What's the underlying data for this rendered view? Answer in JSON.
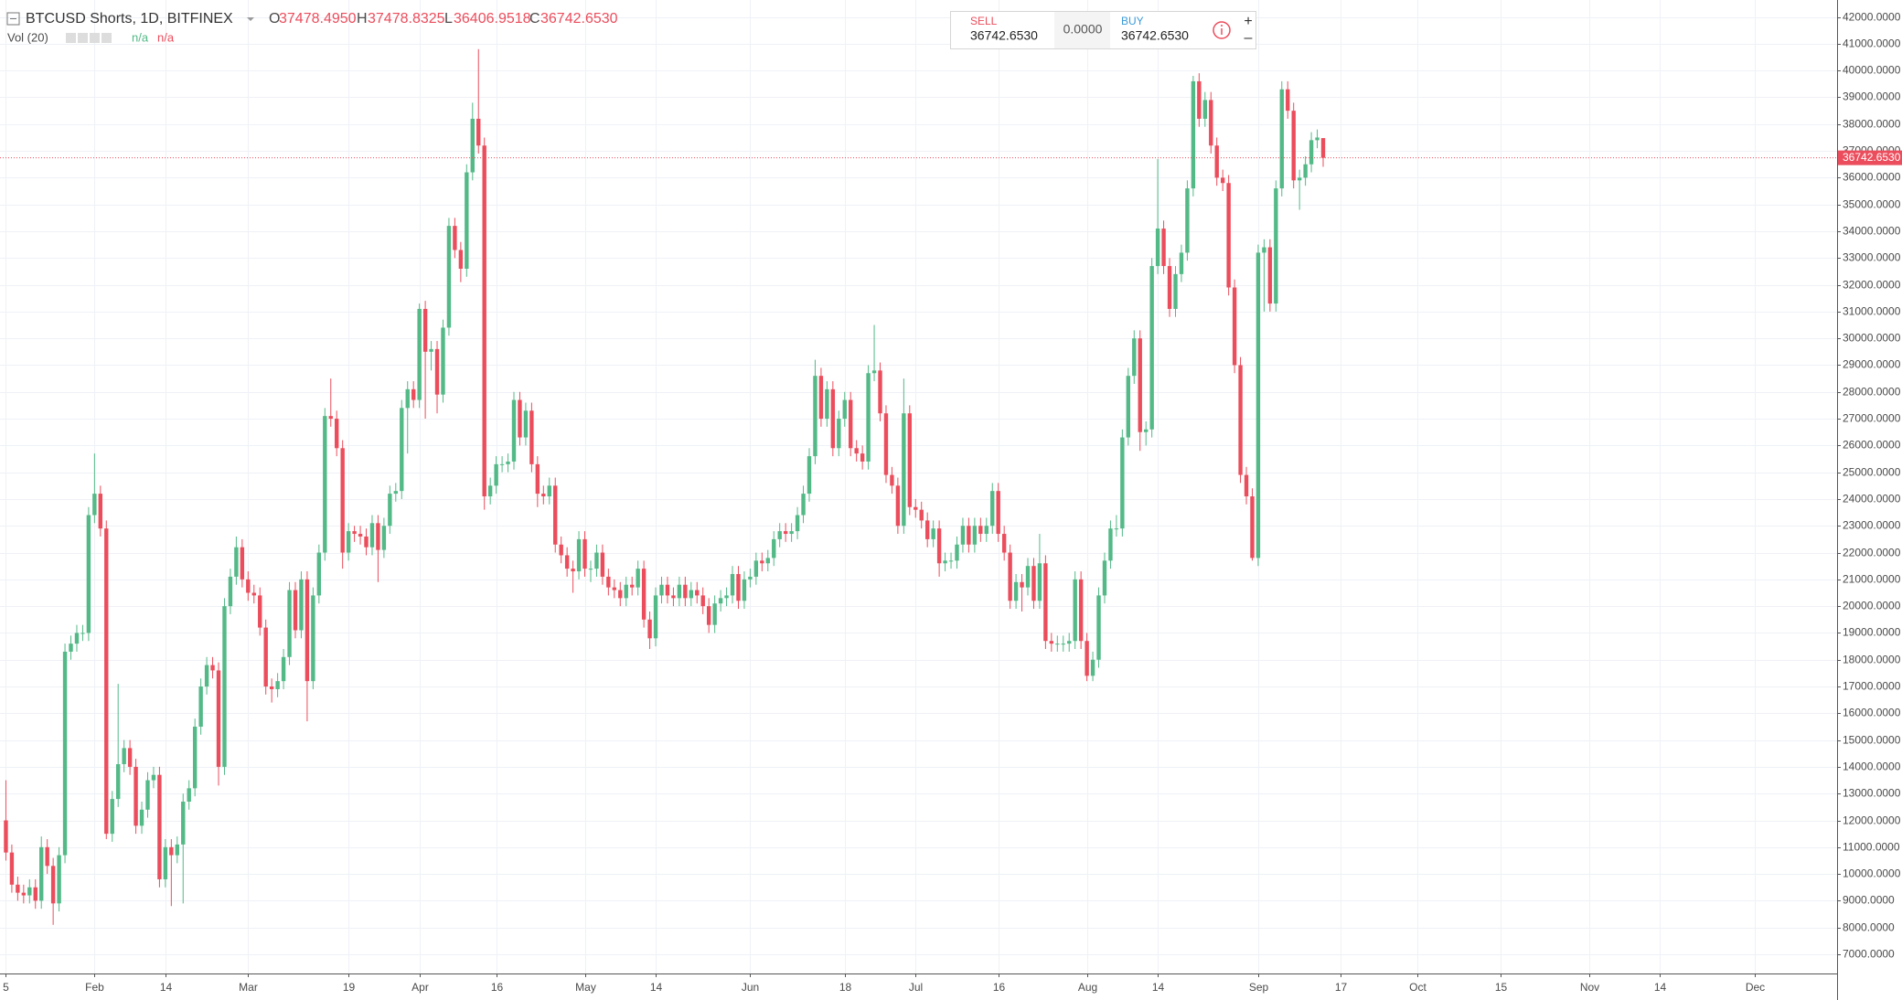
{
  "header": {
    "ohlc": [
      {
        "label": "O",
        "value": "37478.4950"
      },
      {
        "label": "H",
        "value": "37478.8325"
      },
      {
        "label": "L",
        "value": "36406.9518"
      },
      {
        "label": "C",
        "value": "36742.6530"
      }
    ],
    "volume": {
      "label": "Vol (20)",
      "values": [
        "n/a",
        "n/a"
      ]
    }
  },
  "trade_panel": {
    "sell_label": "SELL",
    "sell_price": "36742.6530",
    "spread": "0.0000",
    "buy_label": "BUY",
    "buy_price": "36742.6530",
    "zoom_in": "+",
    "zoom_out": "–"
  },
  "chart_data": {
    "type": "candlestick",
    "title": "BTCUSD Shorts, 1D, BITFINEX",
    "colors": {
      "up": "#53b987",
      "down": "#eb4d5c"
    },
    "grid": true,
    "open": [
      12000,
      10800,
      9600,
      9300,
      9200,
      9500,
      9000,
      11000,
      10300,
      8900,
      10700,
      18300,
      18600,
      19000,
      19000,
      23400,
      24200,
      22900,
      11500,
      12800,
      14100,
      14700,
      14000,
      11800,
      12400,
      13500,
      13700,
      9800,
      11000,
      10700,
      11100,
      12700,
      13200,
      15500,
      17000,
      17800,
      17600,
      14000,
      20000,
      21100,
      22200,
      21000,
      20500,
      20400,
      19200,
      17000,
      16900,
      17200,
      18100,
      20600,
      19100,
      21000,
      17200,
      20400,
      22000,
      27100,
      27000,
      25900,
      22000,
      22800,
      22700,
      22600,
      22200,
      23100,
      22100,
      23000,
      24200,
      24300,
      27400,
      28100,
      27700,
      31100,
      29500,
      29600,
      27900,
      30400,
      34200,
      33300,
      32600,
      36200,
      38200,
      37200,
      24100,
      24500,
      25300,
      25300,
      25400,
      27700,
      26300,
      27300,
      25300,
      24200,
      24100,
      24500,
      22300,
      21900,
      21400,
      21300,
      22500,
      21400,
      21400,
      22000,
      21100,
      20700,
      20600,
      20300,
      20800,
      20700,
      21400,
      19500,
      18800,
      20400,
      20800,
      20400,
      20300,
      20800,
      20300,
      20600,
      20400,
      20000,
      19300,
      20100,
      20300,
      20400,
      21200,
      20200,
      21000,
      21100,
      21700,
      21600,
      21800,
      22500,
      22800,
      22700,
      22800,
      23400,
      24200,
      25600,
      28600,
      27000,
      28100,
      25900,
      27000,
      27700,
      25900,
      25700,
      25400,
      28700,
      28800,
      27200,
      24900,
      24500,
      23000,
      27200,
      23700,
      23600,
      23200,
      22500,
      22900,
      21600,
      21700,
      21700,
      22300,
      23000,
      22300,
      23000,
      22700,
      23000,
      24300,
      22700,
      22000,
      20200,
      20900,
      20700,
      21500,
      20200,
      21600,
      18700,
      18600,
      18600,
      18600,
      18700,
      21000,
      18700,
      17400,
      18000,
      20400,
      21700,
      22900,
      22900,
      26300,
      28600,
      30000,
      26500,
      26600,
      32700,
      34100,
      32700,
      31100,
      32400,
      33200,
      35600,
      39600,
      38200,
      38900,
      37200,
      36000,
      35800,
      31900,
      29000,
      24900,
      24100,
      21800,
      33200,
      33400,
      31300,
      35600,
      39300,
      38500,
      35900,
      36000,
      36500,
      37400,
      37478.495
    ],
    "high": [
      13500,
      11100,
      9900,
      9600,
      9800,
      9800,
      11400,
      11300,
      10600,
      11000,
      18600,
      18900,
      19300,
      19300,
      23700,
      25700,
      24500,
      23200,
      13100,
      17100,
      15000,
      15000,
      14300,
      12700,
      13800,
      14000,
      14000,
      11300,
      11300,
      11400,
      13000,
      13500,
      15800,
      17300,
      18100,
      18100,
      17900,
      20300,
      21400,
      22600,
      22500,
      21300,
      20800,
      20700,
      19500,
      17300,
      17500,
      18400,
      20900,
      20900,
      21300,
      21300,
      20700,
      22300,
      27400,
      28500,
      27300,
      26200,
      23100,
      23000,
      23000,
      22900,
      23400,
      23400,
      23300,
      24500,
      24600,
      27700,
      28400,
      28400,
      31300,
      31400,
      29900,
      29900,
      30700,
      34500,
      34500,
      33600,
      36500,
      38800,
      40800,
      37500,
      24800,
      25600,
      25600,
      25700,
      28000,
      28000,
      27600,
      27600,
      25600,
      24500,
      24800,
      24800,
      22600,
      22200,
      21700,
      22800,
      22800,
      21700,
      22300,
      22300,
      21400,
      21000,
      20900,
      21100,
      21100,
      21700,
      21700,
      19800,
      20700,
      21100,
      21100,
      20700,
      21100,
      21100,
      20900,
      20900,
      20700,
      20300,
      20400,
      20600,
      20700,
      21500,
      21500,
      21300,
      21400,
      22000,
      22000,
      22100,
      22800,
      23100,
      23100,
      23100,
      23700,
      24500,
      25900,
      29200,
      28900,
      28400,
      28400,
      27300,
      28000,
      28000,
      26200,
      26000,
      29000,
      30500,
      29100,
      27500,
      25200,
      24800,
      28500,
      27500,
      24000,
      23900,
      23500,
      23200,
      23200,
      22000,
      22000,
      22600,
      23300,
      23300,
      23300,
      23300,
      23300,
      24600,
      24600,
      23000,
      22300,
      21200,
      21200,
      21800,
      21800,
      22700,
      21900,
      19000,
      18900,
      18900,
      19000,
      21300,
      21300,
      19000,
      18300,
      20700,
      22000,
      23200,
      23400,
      26600,
      28900,
      30300,
      30300,
      26900,
      33000,
      36700,
      34400,
      33000,
      32700,
      33500,
      35900,
      39800,
      39900,
      39200,
      39200,
      37500,
      36300,
      36100,
      32200,
      29300,
      25200,
      24400,
      33500,
      33700,
      33700,
      35900,
      39600,
      39600,
      38800,
      36300,
      36800,
      37700,
      37800,
      37478.8325
    ],
    "low": [
      10500,
      9300,
      9000,
      8900,
      8900,
      8700,
      8700,
      10000,
      8100,
      8600,
      10400,
      18000,
      18300,
      18700,
      18700,
      23100,
      22600,
      11300,
      11200,
      12500,
      13800,
      13700,
      11500,
      11500,
      12100,
      13200,
      9500,
      9500,
      8800,
      10400,
      8900,
      12400,
      12900,
      15200,
      16700,
      17300,
      13300,
      13700,
      19700,
      20800,
      20700,
      20200,
      20100,
      18900,
      16700,
      16400,
      16600,
      16900,
      17800,
      18800,
      18800,
      15700,
      16900,
      20100,
      21700,
      26700,
      25600,
      21400,
      21700,
      22400,
      22300,
      21900,
      21900,
      20900,
      21800,
      22700,
      23900,
      24000,
      25700,
      27400,
      27400,
      27000,
      28800,
      27200,
      27600,
      30100,
      33000,
      32100,
      32300,
      35900,
      36900,
      23600,
      23800,
      24200,
      25000,
      25000,
      25100,
      26000,
      26000,
      25000,
      23700,
      23800,
      23800,
      22000,
      21600,
      21100,
      20500,
      21000,
      21100,
      20900,
      21100,
      20800,
      20400,
      20300,
      20000,
      20000,
      20400,
      20400,
      19200,
      18400,
      18500,
      20100,
      20100,
      20000,
      20000,
      20000,
      20000,
      20100,
      19700,
      19000,
      19000,
      19800,
      20000,
      20100,
      19900,
      19900,
      20700,
      20800,
      21300,
      21300,
      21500,
      22200,
      22400,
      22400,
      22500,
      23100,
      23900,
      25300,
      26700,
      26700,
      25600,
      25600,
      26700,
      25600,
      25400,
      25100,
      25100,
      28400,
      26900,
      24600,
      24200,
      22700,
      22700,
      23400,
      23300,
      22900,
      22200,
      22200,
      21100,
      21300,
      21400,
      21400,
      22000,
      22000,
      22000,
      22400,
      22400,
      22700,
      22400,
      21700,
      19900,
      19900,
      19800,
      20400,
      19900,
      19900,
      18400,
      18300,
      18300,
      18300,
      18300,
      18400,
      18400,
      17200,
      17200,
      17700,
      20100,
      21400,
      22600,
      22600,
      26000,
      28300,
      25800,
      26000,
      26300,
      32400,
      32400,
      30800,
      30800,
      32100,
      32900,
      35300,
      37900,
      37900,
      36900,
      35700,
      35500,
      31600,
      28700,
      24600,
      23800,
      21700,
      21500,
      31000,
      31000,
      31000,
      35300,
      38200,
      35600,
      34800,
      35700,
      36200,
      37100,
      36406.9518
    ],
    "close": [
      10800,
      9600,
      9300,
      9200,
      9500,
      9000,
      11000,
      10300,
      8900,
      10700,
      18300,
      18600,
      19000,
      19000,
      23400,
      24200,
      22900,
      11500,
      12800,
      14100,
      14700,
      14000,
      11800,
      12400,
      13500,
      13700,
      9800,
      11000,
      10700,
      11100,
      12700,
      13200,
      15500,
      17000,
      17800,
      17600,
      14000,
      20000,
      21100,
      22200,
      21000,
      20500,
      20400,
      19200,
      17000,
      16900,
      17200,
      18100,
      20600,
      19100,
      21000,
      17200,
      20400,
      22000,
      27100,
      27000,
      25900,
      22000,
      22800,
      22700,
      22600,
      22200,
      23100,
      22100,
      23000,
      24200,
      24300,
      27400,
      28100,
      27700,
      31100,
      29500,
      29600,
      27900,
      30400,
      34200,
      33300,
      32600,
      36200,
      38200,
      37200,
      24100,
      24500,
      25300,
      25300,
      25400,
      27700,
      26300,
      27300,
      25300,
      24200,
      24100,
      24500,
      22300,
      21900,
      21400,
      21300,
      22500,
      21400,
      21400,
      22000,
      21100,
      20700,
      20600,
      20300,
      20800,
      20700,
      21400,
      19500,
      18800,
      20400,
      20800,
      20400,
      20300,
      20800,
      20300,
      20600,
      20400,
      20000,
      19300,
      20100,
      20300,
      20400,
      21200,
      20200,
      21000,
      21100,
      21700,
      21600,
      21800,
      22500,
      22800,
      22700,
      22800,
      23400,
      24200,
      25600,
      28600,
      27000,
      28100,
      25900,
      27000,
      27700,
      25900,
      25700,
      25400,
      28700,
      28800,
      27200,
      24900,
      24500,
      23000,
      27200,
      23700,
      23600,
      23200,
      22500,
      22900,
      21600,
      21700,
      21700,
      22300,
      23000,
      22300,
      23000,
      22700,
      23000,
      24300,
      22700,
      22000,
      20200,
      20900,
      20700,
      21500,
      20200,
      21600,
      18700,
      18600,
      18600,
      18600,
      18700,
      21000,
      18700,
      17400,
      18000,
      20400,
      21700,
      22900,
      22900,
      26300,
      28600,
      30000,
      26500,
      26600,
      32700,
      34100,
      32700,
      31100,
      32400,
      33200,
      35600,
      39600,
      38200,
      38900,
      37200,
      36000,
      35800,
      31900,
      29000,
      24900,
      24100,
      21800,
      33200,
      33400,
      31300,
      35600,
      39300,
      38500,
      35900,
      36000,
      36500,
      37400,
      37500,
      36742.653
    ],
    "last_price": {
      "value": 36742.653,
      "label": "36742.6530"
    },
    "xlim": [
      -1,
      310
    ],
    "xticks": [
      {
        "value": 0,
        "label": "5"
      },
      {
        "value": 15,
        "label": "Feb"
      },
      {
        "value": 27,
        "label": "14"
      },
      {
        "value": 41,
        "label": "Mar"
      },
      {
        "value": 58,
        "label": "19"
      },
      {
        "value": 70,
        "label": "Apr"
      },
      {
        "value": 83,
        "label": "16"
      },
      {
        "value": 98,
        "label": "May"
      },
      {
        "value": 110,
        "label": "14"
      },
      {
        "value": 126,
        "label": "Jun"
      },
      {
        "value": 142,
        "label": "18"
      },
      {
        "value": 154,
        "label": "Jul"
      },
      {
        "value": 168,
        "label": "16"
      },
      {
        "value": 183,
        "label": "Aug"
      },
      {
        "value": 195,
        "label": "14"
      },
      {
        "value": 212,
        "label": "Sep"
      },
      {
        "value": 226,
        "label": "17"
      },
      {
        "value": 239,
        "label": "Oct"
      },
      {
        "value": 253,
        "label": "15"
      },
      {
        "value": 268,
        "label": "Nov"
      },
      {
        "value": 280,
        "label": "14"
      },
      {
        "value": 296,
        "label": "Dec"
      }
    ],
    "ylim": [
      6283,
      42635
    ],
    "yticks": [
      {
        "value": 42000,
        "label": "42000.0000"
      },
      {
        "value": 41000,
        "label": "41000.0000"
      },
      {
        "value": 40000,
        "label": "40000.0000"
      },
      {
        "value": 39000,
        "label": "39000.0000"
      },
      {
        "value": 38000,
        "label": "38000.0000"
      },
      {
        "value": 37000,
        "label": "37000.0000"
      },
      {
        "value": 36000,
        "label": "36000.0000"
      },
      {
        "value": 35000,
        "label": "35000.0000"
      },
      {
        "value": 34000,
        "label": "34000.0000"
      },
      {
        "value": 33000,
        "label": "33000.0000"
      },
      {
        "value": 32000,
        "label": "32000.0000"
      },
      {
        "value": 31000,
        "label": "31000.0000"
      },
      {
        "value": 30000,
        "label": "30000.0000"
      },
      {
        "value": 29000,
        "label": "29000.0000"
      },
      {
        "value": 28000,
        "label": "28000.0000"
      },
      {
        "value": 27000,
        "label": "27000.0000"
      },
      {
        "value": 26000,
        "label": "26000.0000"
      },
      {
        "value": 25000,
        "label": "25000.0000"
      },
      {
        "value": 24000,
        "label": "24000.0000"
      },
      {
        "value": 23000,
        "label": "23000.0000"
      },
      {
        "value": 22000,
        "label": "22000.0000"
      },
      {
        "value": 21000,
        "label": "21000.0000"
      },
      {
        "value": 20000,
        "label": "20000.0000"
      },
      {
        "value": 19000,
        "label": "19000.0000"
      },
      {
        "value": 18000,
        "label": "18000.0000"
      },
      {
        "value": 17000,
        "label": "17000.0000"
      },
      {
        "value": 16000,
        "label": "16000.0000"
      },
      {
        "value": 15000,
        "label": "15000.0000"
      },
      {
        "value": 14000,
        "label": "14000.0000"
      },
      {
        "value": 13000,
        "label": "13000.0000"
      },
      {
        "value": 12000,
        "label": "12000.0000"
      },
      {
        "value": 11000,
        "label": "11000.0000"
      },
      {
        "value": 10000,
        "label": "10000.0000"
      },
      {
        "value": 9000,
        "label": "9000.0000"
      },
      {
        "value": 8000,
        "label": "8000.0000"
      },
      {
        "value": 7000,
        "label": "7000.0000"
      }
    ]
  }
}
